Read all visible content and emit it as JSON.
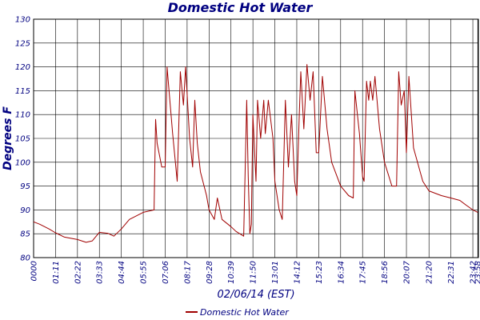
{
  "chart_data": {
    "type": "line",
    "title": "Domestic Hot Water",
    "xlabel": "02/06/14 (EST)",
    "ylabel": "Degrees F",
    "ylim": [
      80,
      130
    ],
    "y_ticks": [
      80,
      85,
      90,
      95,
      100,
      105,
      110,
      115,
      120,
      125,
      130
    ],
    "x_tick_labels": [
      "0000",
      "01:11",
      "02:22",
      "03:33",
      "04:44",
      "05:55",
      "07:06",
      "08:17",
      "09:28",
      "10:39",
      "11:50",
      "13:01",
      "14:12",
      "15:23",
      "16:34",
      "17:45",
      "18:56",
      "20:07",
      "21:20",
      "22:31",
      "23:42",
      "23:58"
    ],
    "grid": true,
    "legend": "bottom-center",
    "series": [
      {
        "name": "Domestic Hot Water",
        "color": "#a00000",
        "points": [
          [
            "0000",
            87.5
          ],
          [
            "00:20",
            87.0
          ],
          [
            "00:50",
            86.0
          ],
          [
            "01:11",
            85.2
          ],
          [
            "01:40",
            84.3
          ],
          [
            "02:22",
            83.8
          ],
          [
            "02:50",
            83.2
          ],
          [
            "03:10",
            83.5
          ],
          [
            "03:33",
            85.3
          ],
          [
            "04:00",
            85.1
          ],
          [
            "04:20",
            84.5
          ],
          [
            "04:44",
            86.0
          ],
          [
            "05:10",
            88.0
          ],
          [
            "05:55",
            89.5
          ],
          [
            "06:30",
            90.0
          ],
          [
            "06:35",
            109.0
          ],
          [
            "06:40",
            104.0
          ],
          [
            "06:55",
            99.0
          ],
          [
            "07:06",
            99.0
          ],
          [
            "07:12",
            120.0
          ],
          [
            "07:30",
            106.0
          ],
          [
            "07:45",
            96.0
          ],
          [
            "07:55",
            119.0
          ],
          [
            "08:05",
            112.0
          ],
          [
            "08:12",
            120.0
          ],
          [
            "08:25",
            105.0
          ],
          [
            "08:35",
            99.0
          ],
          [
            "08:42",
            113.0
          ],
          [
            "08:50",
            104.0
          ],
          [
            "09:00",
            98.0
          ],
          [
            "09:20",
            93.0
          ],
          [
            "09:28",
            90.0
          ],
          [
            "09:45",
            88.0
          ],
          [
            "09:55",
            92.5
          ],
          [
            "10:10",
            88.0
          ],
          [
            "10:39",
            86.5
          ],
          [
            "10:55",
            85.5
          ],
          [
            "11:20",
            84.5
          ],
          [
            "11:30",
            113.0
          ],
          [
            "11:35",
            97.0
          ],
          [
            "11:40",
            85.0
          ],
          [
            "11:45",
            87.0
          ],
          [
            "11:50",
            110.0
          ],
          [
            "12:00",
            96.0
          ],
          [
            "12:05",
            113.0
          ],
          [
            "12:15",
            105.0
          ],
          [
            "12:25",
            113.0
          ],
          [
            "12:30",
            106.0
          ],
          [
            "12:40",
            113.0
          ],
          [
            "12:55",
            105.0
          ],
          [
            "13:01",
            96.0
          ],
          [
            "13:15",
            90.0
          ],
          [
            "13:25",
            88.0
          ],
          [
            "13:35",
            113.0
          ],
          [
            "13:45",
            99.0
          ],
          [
            "13:55",
            110.0
          ],
          [
            "14:05",
            96.0
          ],
          [
            "14:12",
            93.0
          ],
          [
            "14:20",
            110.0
          ],
          [
            "14:25",
            119.0
          ],
          [
            "14:35",
            107.0
          ],
          [
            "14:45",
            120.5
          ],
          [
            "14:55",
            113.0
          ],
          [
            "15:05",
            119.0
          ],
          [
            "15:15",
            102.0
          ],
          [
            "15:23",
            102.0
          ],
          [
            "15:35",
            118.0
          ],
          [
            "15:50",
            107.0
          ],
          [
            "16:05",
            100.0
          ],
          [
            "16:34",
            95.0
          ],
          [
            "17:00",
            93.0
          ],
          [
            "17:15",
            92.5
          ],
          [
            "17:20",
            115.0
          ],
          [
            "17:35",
            106.0
          ],
          [
            "17:45",
            97.0
          ],
          [
            "17:50",
            96.0
          ],
          [
            "17:58",
            117.0
          ],
          [
            "18:05",
            113.0
          ],
          [
            "18:10",
            117.0
          ],
          [
            "18:18",
            113.0
          ],
          [
            "18:25",
            118.0
          ],
          [
            "18:40",
            107.0
          ],
          [
            "18:56",
            100.0
          ],
          [
            "19:20",
            95.0
          ],
          [
            "19:35",
            95.0
          ],
          [
            "19:42",
            119.0
          ],
          [
            "19:50",
            112.0
          ],
          [
            "20:00",
            115.0
          ],
          [
            "20:07",
            102.0
          ],
          [
            "20:15",
            118.0
          ],
          [
            "20:30",
            103.0
          ],
          [
            "21:00",
            96.0
          ],
          [
            "21:20",
            94.0
          ],
          [
            "22:00",
            93.0
          ],
          [
            "22:31",
            92.5
          ],
          [
            "23:00",
            92.0
          ],
          [
            "23:20",
            91.0
          ],
          [
            "23:42",
            90.0
          ],
          [
            "23:58",
            89.5
          ]
        ]
      }
    ]
  }
}
